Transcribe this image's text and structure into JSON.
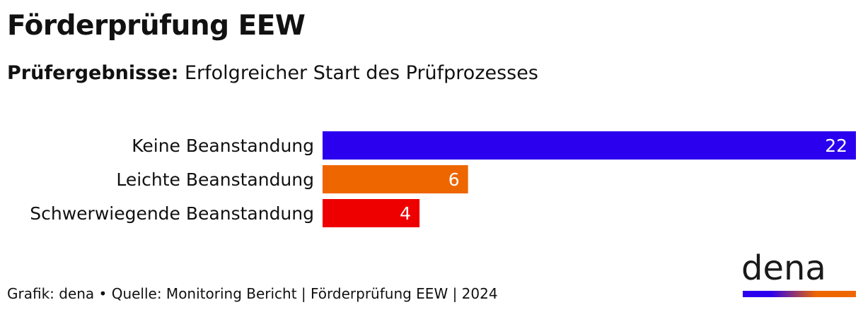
{
  "title": "Förderprüfung EEW",
  "subtitle_bold": "Prüfergebnisse:",
  "subtitle_rest": "Erfolgreicher Start des Prüfprozesses",
  "footer": "Grafik: dena • Quelle: Monitoring Bericht | Förderprüfung EEW | 2024",
  "logo": {
    "text": "dena",
    "gradient": [
      "#2a00ee",
      "#ee6600"
    ]
  },
  "chart_data": {
    "type": "bar",
    "orientation": "horizontal",
    "categories": [
      "Keine Beanstandung",
      "Leichte Beanstandung",
      "Schwerwiegende Beanstandung"
    ],
    "values": [
      22,
      6,
      4
    ],
    "colors": [
      "#2a00ee",
      "#ee6600",
      "#ee0000"
    ],
    "data_labels": [
      "22",
      "6",
      "4"
    ],
    "xlim": [
      0,
      22
    ],
    "grid": false
  }
}
